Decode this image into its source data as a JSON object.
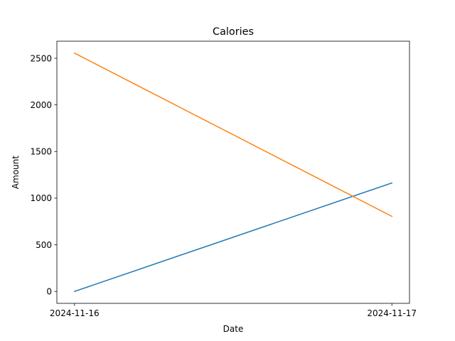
{
  "chart_data": {
    "type": "line",
    "title": "Calories",
    "xlabel": "Date",
    "ylabel": "Amount",
    "x": [
      "2024-11-16",
      "2024-11-17"
    ],
    "series": [
      {
        "color": "#1f77b4",
        "values": [
          0,
          1163
        ]
      },
      {
        "color": "#ff7f0e",
        "values": [
          2555,
          805
        ]
      }
    ],
    "ylim": [
      -127.75,
      2682.75
    ],
    "yticks": [
      0,
      500,
      1000,
      1500,
      2000,
      2500
    ],
    "grid": false,
    "legend": false
  }
}
